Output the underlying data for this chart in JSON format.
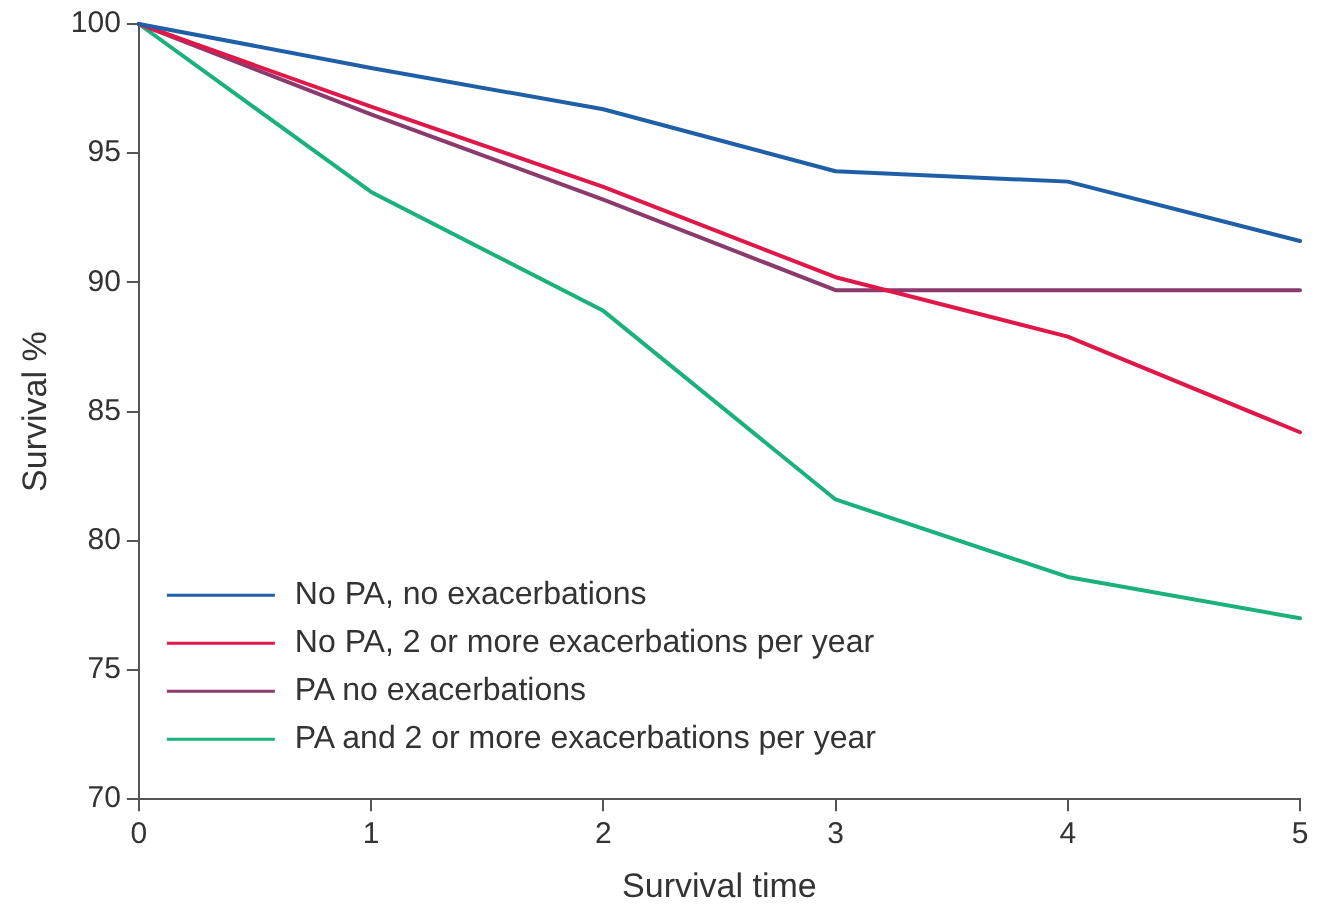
{
  "chart_data": {
    "type": "line",
    "xlabel": "Survival time",
    "ylabel": "Survival %",
    "x": [
      0,
      1,
      2,
      3,
      4,
      5
    ],
    "xlim": [
      0,
      5
    ],
    "xticks": [
      0,
      1,
      2,
      3,
      4,
      5
    ],
    "ylim": [
      70,
      100
    ],
    "yticks": [
      70,
      75,
      80,
      85,
      90,
      95,
      100
    ],
    "grid": false,
    "legend": "bottom left",
    "marker": "none",
    "line_style": "solid",
    "series": [
      {
        "name": "No PA, no exacerbations",
        "color": "#1f5fa8",
        "values": [
          100,
          98.3,
          96.7,
          94.3,
          93.9,
          91.6
        ]
      },
      {
        "name": "No PA, 2 or more exacerbations per year",
        "color": "#e0184a",
        "values": [
          100,
          96.8,
          93.7,
          90.2,
          87.9,
          84.2
        ]
      },
      {
        "name": "PA no exacerbations",
        "color": "#8b3a6e",
        "values": [
          100,
          96.5,
          93.2,
          89.7,
          89.7,
          89.7
        ]
      },
      {
        "name": "PA and 2 or more exacerbations per year",
        "color": "#1ab27a",
        "values": [
          100,
          93.5,
          88.9,
          81.6,
          78.6,
          77.0
        ]
      }
    ]
  }
}
